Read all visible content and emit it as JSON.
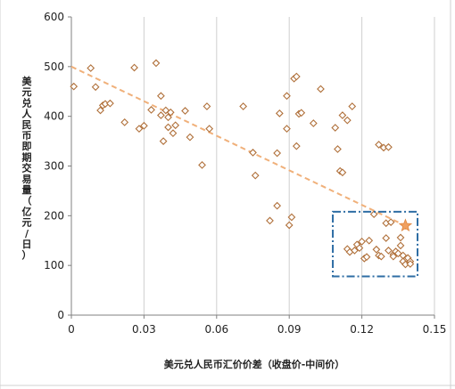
{
  "chart_data": {
    "type": "scatter",
    "xlabel": "美元兑人民币汇价价差（收盘价-中间价）",
    "ylabel": "美元兑人民币即期交易量（亿元/日）",
    "xlim": [
      0,
      0.15
    ],
    "ylim": [
      0,
      600
    ],
    "x_ticks": [
      "0",
      "0.03",
      "0.06",
      "0.09",
      "0.12",
      "0.15"
    ],
    "y_ticks": [
      "0",
      "100",
      "200",
      "300",
      "400",
      "500",
      "600"
    ],
    "grid": "vertical",
    "trendline": {
      "style": "dashed",
      "color": "#f0b07a",
      "from": [
        0,
        500
      ],
      "to": [
        0.138,
        180
      ]
    },
    "highlight_point": {
      "x": 0.138,
      "y": 180,
      "marker": "star",
      "color": "#f0a060"
    },
    "highlight_box": {
      "x_range": [
        0.108,
        0.143
      ],
      "y_range": [
        78,
        208
      ],
      "color": "#2e6da4",
      "style": "dash-dot"
    },
    "series": [
      {
        "marker": "diamond",
        "color": "#b0703a",
        "points": [
          [
            0.001,
            460
          ],
          [
            0.008,
            497
          ],
          [
            0.01,
            459
          ],
          [
            0.012,
            412
          ],
          [
            0.013,
            422
          ],
          [
            0.014,
            425
          ],
          [
            0.016,
            426
          ],
          [
            0.022,
            388
          ],
          [
            0.026,
            498
          ],
          [
            0.028,
            375
          ],
          [
            0.03,
            381
          ],
          [
            0.033,
            413
          ],
          [
            0.035,
            507
          ],
          [
            0.037,
            441
          ],
          [
            0.037,
            402
          ],
          [
            0.038,
            350
          ],
          [
            0.039,
            412
          ],
          [
            0.04,
            398
          ],
          [
            0.04,
            378
          ],
          [
            0.041,
            408
          ],
          [
            0.042,
            366
          ],
          [
            0.043,
            382
          ],
          [
            0.047,
            411
          ],
          [
            0.049,
            358
          ],
          [
            0.054,
            302
          ],
          [
            0.056,
            420
          ],
          [
            0.057,
            375
          ],
          [
            0.071,
            420
          ],
          [
            0.075,
            327
          ],
          [
            0.076,
            281
          ],
          [
            0.082,
            190
          ],
          [
            0.085,
            220
          ],
          [
            0.085,
            326
          ],
          [
            0.086,
            406
          ],
          [
            0.089,
            441
          ],
          [
            0.089,
            375
          ],
          [
            0.09,
            181
          ],
          [
            0.091,
            197
          ],
          [
            0.092,
            476
          ],
          [
            0.093,
            480
          ],
          [
            0.093,
            340
          ],
          [
            0.094,
            405
          ],
          [
            0.095,
            407
          ],
          [
            0.1,
            386
          ],
          [
            0.103,
            455
          ],
          [
            0.109,
            377
          ],
          [
            0.11,
            334
          ],
          [
            0.111,
            290
          ],
          [
            0.112,
            402
          ],
          [
            0.112,
            287
          ],
          [
            0.114,
            392
          ],
          [
            0.116,
            420
          ],
          [
            0.114,
            133
          ],
          [
            0.115,
            127
          ],
          [
            0.117,
            130
          ],
          [
            0.118,
            142
          ],
          [
            0.119,
            135
          ],
          [
            0.12,
            148
          ],
          [
            0.121,
            114
          ],
          [
            0.122,
            117
          ],
          [
            0.123,
            150
          ],
          [
            0.125,
            203
          ],
          [
            0.126,
            132
          ],
          [
            0.127,
            343
          ],
          [
            0.127,
            120
          ],
          [
            0.128,
            118
          ],
          [
            0.129,
            337
          ],
          [
            0.13,
            185
          ],
          [
            0.13,
            155
          ],
          [
            0.131,
            130
          ],
          [
            0.131,
            338
          ],
          [
            0.132,
            187
          ],
          [
            0.133,
            122
          ],
          [
            0.133,
            118
          ],
          [
            0.134,
            128
          ],
          [
            0.135,
            124
          ],
          [
            0.136,
            156
          ],
          [
            0.136,
            140
          ],
          [
            0.137,
            120
          ],
          [
            0.137,
            108
          ],
          [
            0.138,
            102
          ],
          [
            0.139,
            115
          ],
          [
            0.14,
            108
          ],
          [
            0.14,
            103
          ],
          [
            0.138,
            180
          ]
        ]
      }
    ]
  }
}
